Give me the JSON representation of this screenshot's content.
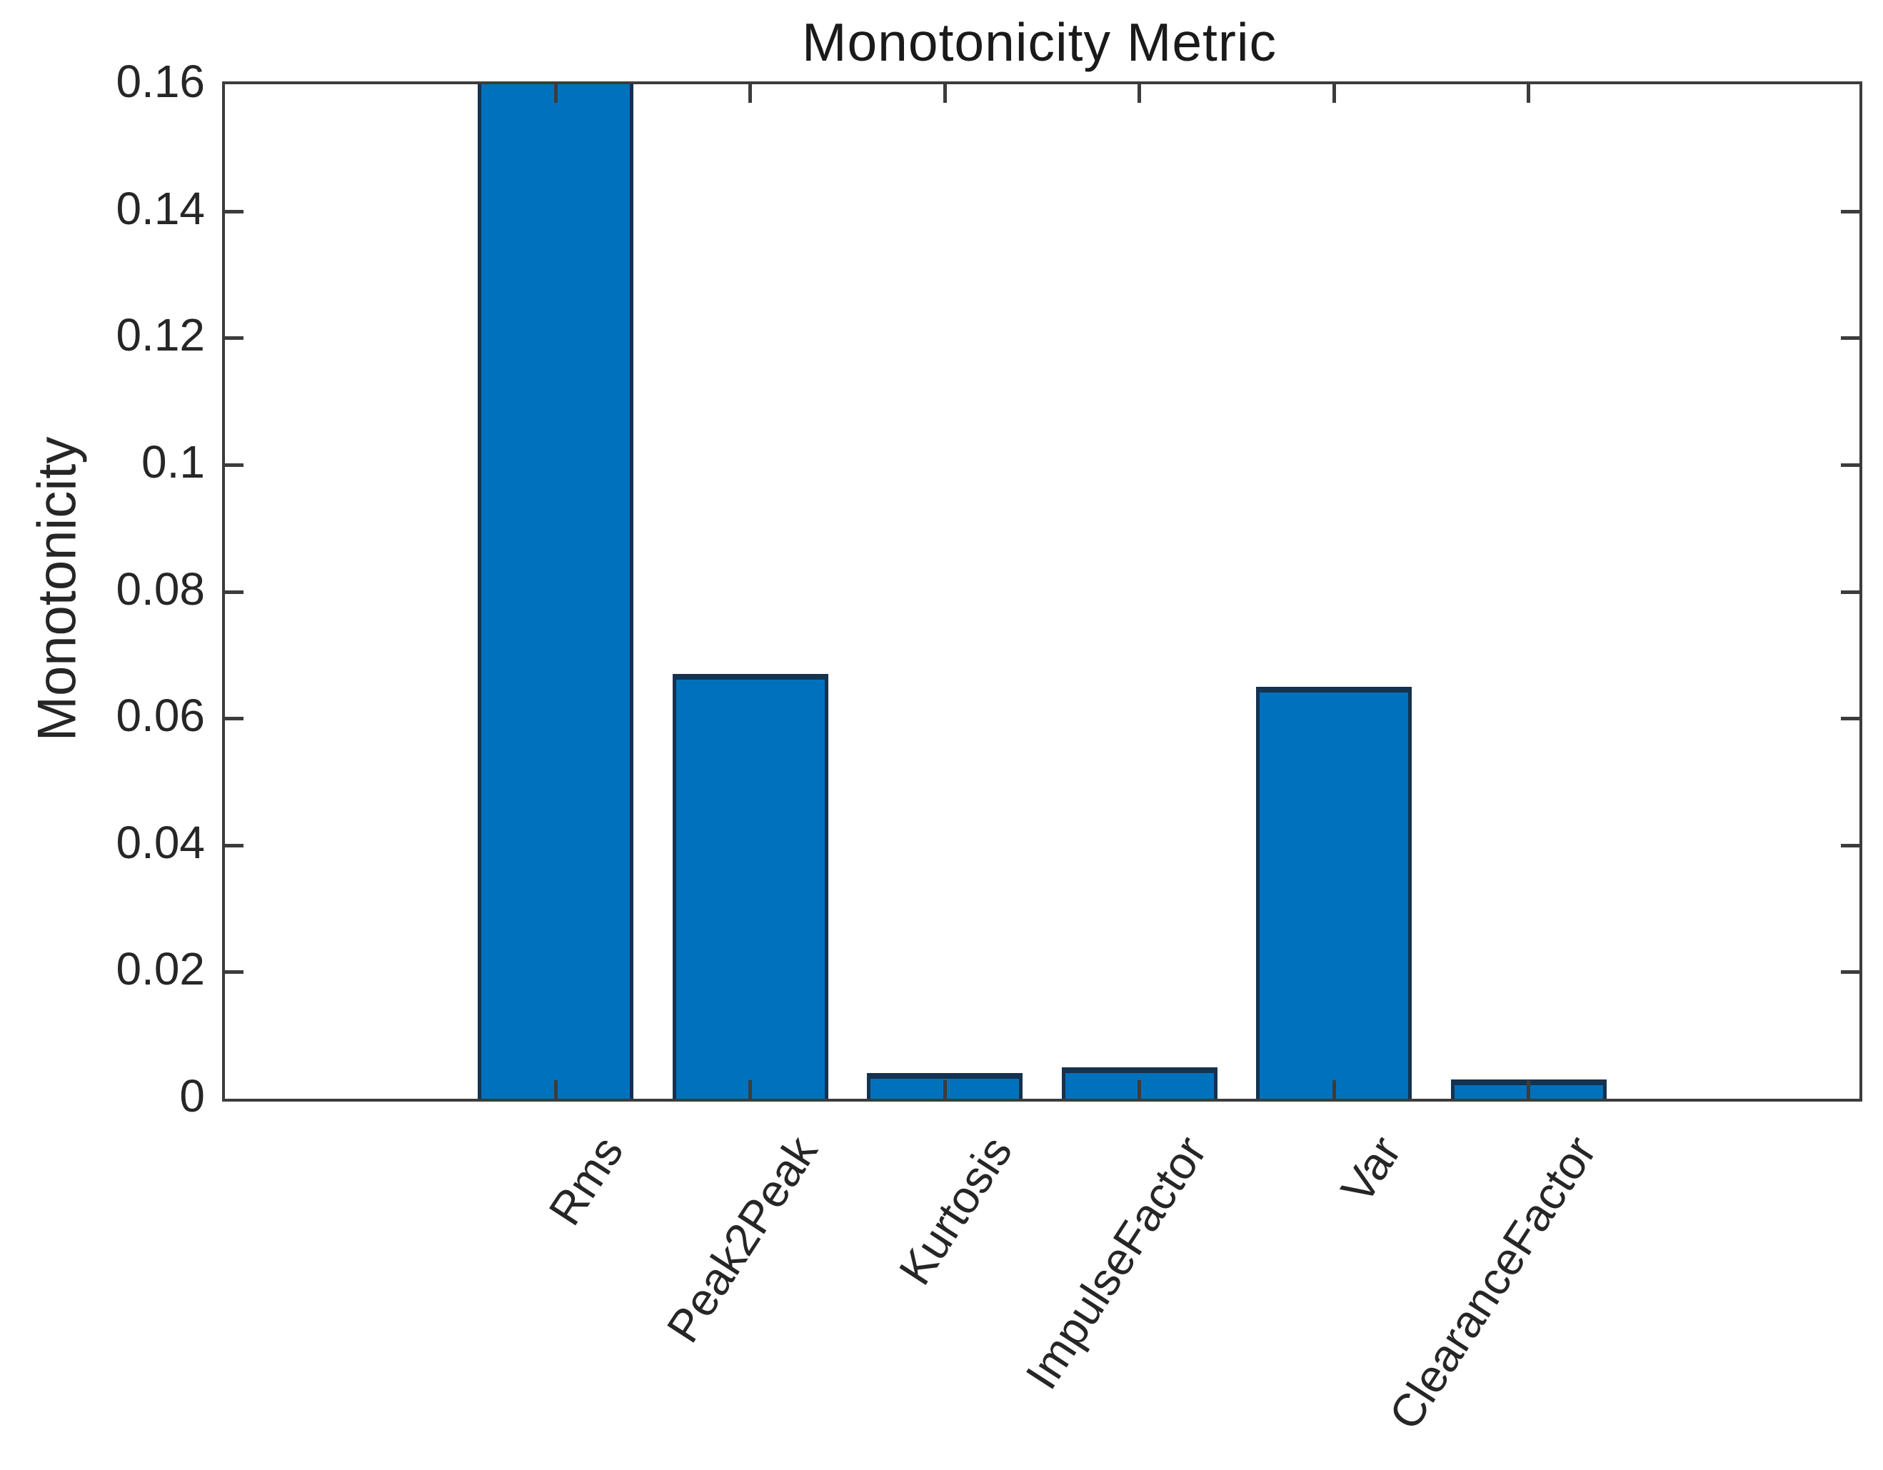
{
  "chart_data": {
    "type": "bar",
    "title": "Monotonicity Metric",
    "xlabel": "",
    "ylabel": "Monotonicity",
    "categories": [
      "Rms",
      "Peak2Peak",
      "Kurtosis",
      "ImpulseFactor",
      "Var",
      "ClearanceFactor"
    ],
    "values": [
      0.16,
      0.067,
      0.004,
      0.005,
      0.065,
      0.003
    ],
    "bar_clipped_at_top": [
      true,
      false,
      false,
      false,
      false,
      false
    ],
    "ylim": [
      0,
      0.16
    ],
    "yticks": [
      {
        "label": "0",
        "value": 0
      },
      {
        "label": "0.02",
        "value": 0.02
      },
      {
        "label": "0.04",
        "value": 0.04
      },
      {
        "label": "0.06",
        "value": 0.06
      },
      {
        "label": "0.08",
        "value": 0.08
      },
      {
        "label": "0.1",
        "value": 0.1
      },
      {
        "label": "0.12",
        "value": 0.12
      },
      {
        "label": "0.14",
        "value": 0.14
      },
      {
        "label": "0.16",
        "value": 0.16
      }
    ],
    "grid": false,
    "legend": false,
    "box_outline": true,
    "tick_direction": "in",
    "xtick_label_rotation_deg": 57,
    "bar_width_fraction": 0.8,
    "colors": {
      "bar_fill": "#0072BD",
      "bar_edge": "#15324F",
      "axis": "#3C3C3C",
      "text": "#262626",
      "background": "#FFFFFF"
    }
  }
}
